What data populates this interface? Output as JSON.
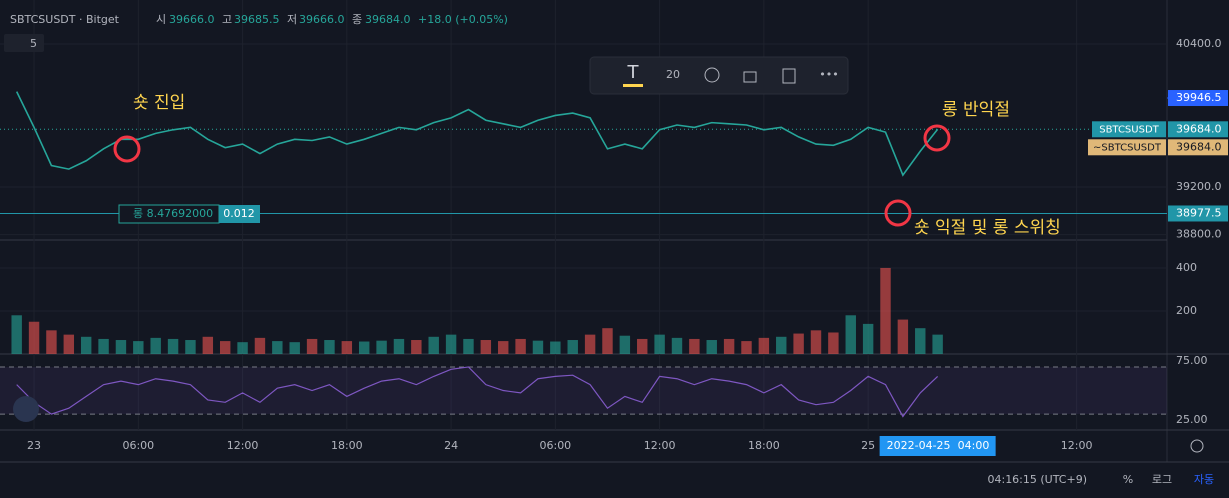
{
  "header": {
    "symbol": "SBTCSUSDT · Bitget",
    "open_label": "시",
    "open": "39666.0",
    "high_label": "고",
    "high": "39685.5",
    "low_label": "저",
    "low": "39666.0",
    "close_label": "종",
    "close": "39684.0",
    "change": "+18.0 (+0.05%)",
    "interval": "5"
  },
  "toolbar": {
    "size": "20"
  },
  "annotations": [
    "숏 진입",
    "롱 반익절",
    "숏 익절 및 롱 스위칭"
  ],
  "order": {
    "label": "롱 8.47692000",
    "qty": "0.012"
  },
  "chart_data": {
    "type": "line",
    "x": [
      -1,
      0,
      1,
      2,
      3,
      4,
      5,
      6,
      7,
      8,
      9,
      10,
      11,
      12,
      13,
      14,
      15,
      16,
      17,
      18,
      19,
      20,
      21,
      22,
      23,
      24,
      25,
      26,
      27,
      28,
      29,
      30,
      31,
      32,
      33,
      34,
      35,
      36,
      37,
      38,
      39,
      40,
      41,
      42,
      43,
      44,
      45,
      46,
      47,
      48,
      49,
      50,
      51,
      52
    ],
    "xlim": [
      -1.96,
      65.2
    ],
    "xticks": [
      {
        "value": 0,
        "label": "23"
      },
      {
        "value": 6,
        "label": "06:00"
      },
      {
        "value": 12,
        "label": "12:00"
      },
      {
        "value": 18,
        "label": "18:00"
      },
      {
        "value": 24,
        "label": "24"
      },
      {
        "value": 30,
        "label": "06:00"
      },
      {
        "value": 36,
        "label": "12:00"
      },
      {
        "value": 42,
        "label": "18:00"
      },
      {
        "value": 48,
        "label": "25"
      },
      {
        "value": 60,
        "label": "12:00"
      }
    ],
    "cursor": {
      "value": 52,
      "date": "2022-04-25",
      "time": "04:00"
    },
    "series": [
      {
        "name": "SBTCSUSDT",
        "color": "#26a69a",
        "values": [
          40000,
          39700,
          39380,
          39350,
          39420,
          39520,
          39600,
          39600,
          39650,
          39680,
          39700,
          39600,
          39530,
          39560,
          39480,
          39560,
          39600,
          39590,
          39620,
          39560,
          39600,
          39650,
          39700,
          39680,
          39740,
          39780,
          39850,
          39760,
          39730,
          39700,
          39760,
          39800,
          39820,
          39780,
          39520,
          39560,
          39520,
          39680,
          39720,
          39700,
          39740,
          39730,
          39720,
          39680,
          39700,
          39620,
          39560,
          39550,
          39600,
          39700,
          39660,
          39300,
          39500,
          39684
        ]
      }
    ],
    "ylim": [
      38755,
      40769
    ],
    "yticks": [
      {
        "value": 40400,
        "label": "40400.0"
      },
      {
        "value": 39200,
        "label": "39200.0"
      },
      {
        "value": 38800,
        "label": "38800.0"
      }
    ],
    "price_marks": [
      {
        "value": 39946.5,
        "label": "39946.5"
      },
      {
        "value": 38977.5,
        "label": "38977.5"
      }
    ],
    "last": {
      "name": "SBTCSUSDT",
      "value": 39684,
      "label": "39684.0",
      "alt_name": "~SBTCSUSDT",
      "alt_label": "39684.0"
    },
    "volume": {
      "values": [
        180,
        150,
        110,
        90,
        80,
        70,
        65,
        60,
        75,
        70,
        65,
        80,
        60,
        55,
        75,
        60,
        55,
        70,
        65,
        60,
        58,
        62,
        70,
        65,
        80,
        90,
        70,
        65,
        60,
        70,
        62,
        58,
        65,
        90,
        120,
        85,
        70,
        90,
        75,
        70,
        65,
        70,
        60,
        75,
        80,
        95,
        110,
        100,
        180,
        140,
        400,
        160,
        120,
        90
      ],
      "ylim": [
        0,
        530
      ],
      "yticks": [
        400,
        200
      ]
    },
    "rsi": {
      "values": [
        55,
        40,
        30,
        35,
        45,
        55,
        58,
        55,
        60,
        58,
        55,
        42,
        40,
        48,
        40,
        52,
        55,
        50,
        55,
        45,
        52,
        58,
        60,
        55,
        62,
        68,
        70,
        55,
        50,
        48,
        60,
        62,
        63,
        55,
        35,
        45,
        40,
        62,
        60,
        55,
        60,
        58,
        55,
        48,
        55,
        42,
        38,
        40,
        50,
        62,
        55,
        28,
        48,
        62
      ],
      "ylim": [
        16.5,
        81
      ],
      "yticks": [
        {
          "value": 75,
          "label": "75.00"
        },
        {
          "value": 25,
          "label": "25.00"
        }
      ],
      "bands": [
        70,
        30
      ]
    }
  },
  "footer": {
    "clock": "04:16:15 (UTC+9)",
    "percent": "%",
    "log": "로그",
    "auto": "자동"
  }
}
